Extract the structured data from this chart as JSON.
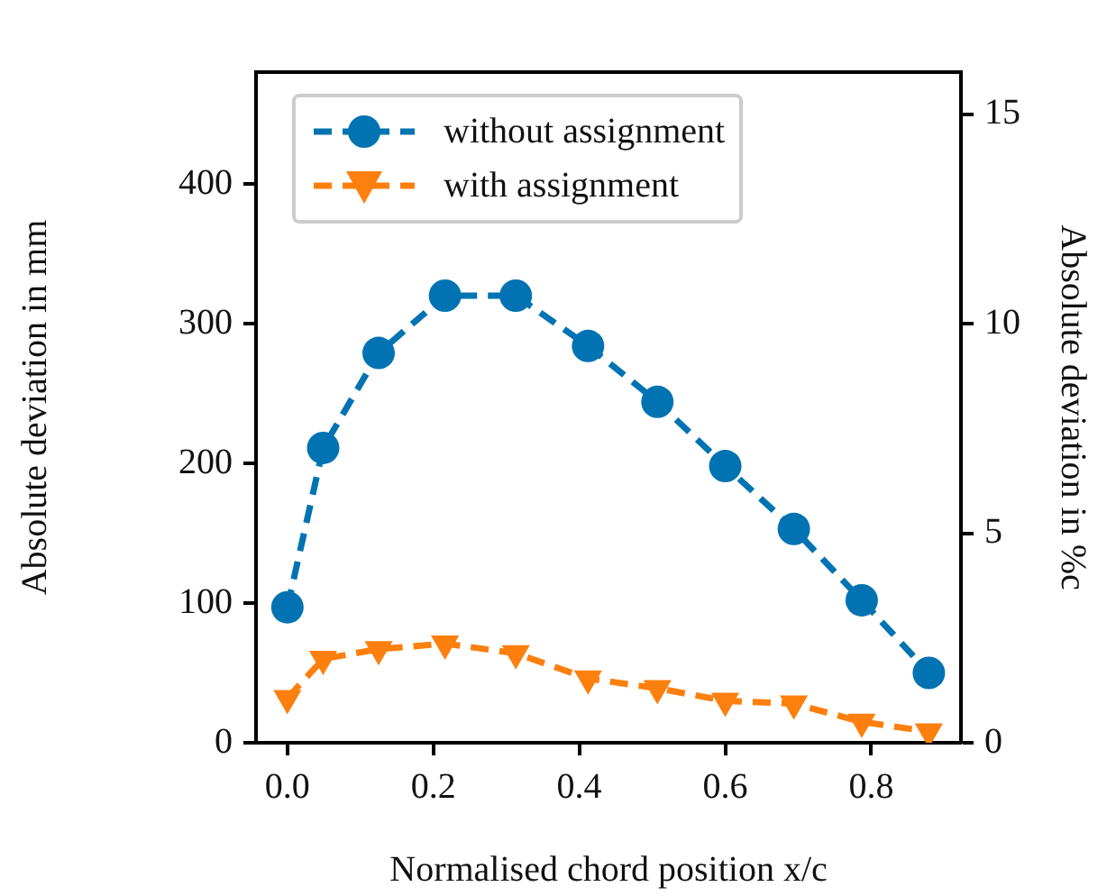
{
  "chart_data": {
    "type": "line",
    "xlabel": "Normalised chord position x/c",
    "ylabel": "Absolute deviation in mm",
    "y2label": "Absolute deviation in %c",
    "xlim": [
      -0.043,
      0.923
    ],
    "xticks": [
      {
        "value": 0,
        "label": "0.0"
      },
      {
        "value": 0.2,
        "label": "0.2"
      },
      {
        "value": 0.4,
        "label": "0.4"
      },
      {
        "value": 0.6,
        "label": "0.6"
      },
      {
        "value": 0.8,
        "label": "0.8"
      }
    ],
    "ylim": [
      0,
      480
    ],
    "yticks": [
      0,
      100,
      200,
      300,
      400
    ],
    "y2lim": [
      0,
      16
    ],
    "y2ticks": [
      0,
      5,
      10,
      15
    ],
    "x": [
      0,
      0.049,
      0.125,
      0.216,
      0.313,
      0.412,
      0.507,
      0.6,
      0.694,
      0.787,
      0.879
    ],
    "series": [
      {
        "name": "without assignment",
        "color": "#0173b2",
        "marker": "circle",
        "values": [
          97,
          211,
          279,
          320,
          320,
          284,
          244,
          198,
          153,
          102,
          50
        ]
      },
      {
        "name": "with assignment",
        "color": "#fd7f0e",
        "marker": "triangle",
        "values": [
          32,
          60,
          67,
          71,
          64,
          46,
          39,
          30,
          28,
          15,
          8
        ]
      }
    ],
    "line_style": "dashed",
    "legend": "top left",
    "grid": false
  }
}
